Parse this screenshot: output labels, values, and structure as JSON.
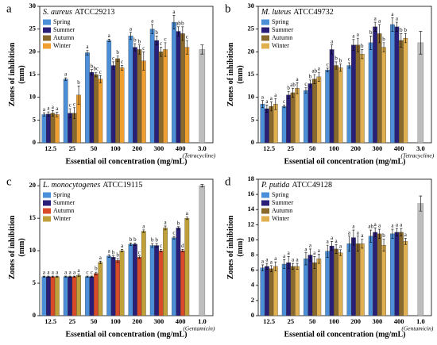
{
  "chart_data": [
    {
      "type": "bar",
      "panel": "a",
      "species": "S. aureus",
      "strain": "ATCC29213",
      "xlabel": "Essential oil concentration (mg/mL)",
      "ylabel": [
        "Zones of inhibition",
        "(mm)"
      ],
      "categories": [
        "12.5",
        "25",
        "50",
        "100",
        "200",
        "300",
        "400"
      ],
      "ylim": [
        0,
        30
      ],
      "yticks": [
        0,
        5,
        10,
        15,
        20,
        25,
        30
      ],
      "series": [
        {
          "name": "Spring",
          "color": "#4a8fd8",
          "values": [
            6.2,
            14,
            19.8,
            22.5,
            23.5,
            25,
            26.5
          ],
          "errors": [
            0.4,
            0.3,
            0.5,
            0.3,
            0.8,
            1.0,
            1.5
          ],
          "letters": [
            "a",
            "a",
            "a",
            "a",
            "a",
            "a",
            "a"
          ]
        },
        {
          "name": "Summer",
          "color": "#2a1f78",
          "values": [
            6.3,
            6.5,
            15.5,
            17,
            21,
            22.5,
            24.5
          ],
          "errors": [
            0.5,
            1.0,
            0.6,
            0.8,
            0.8,
            1.0,
            1.0
          ],
          "letters": [
            "a",
            "c",
            "b",
            "c",
            "b",
            "b",
            "ab"
          ]
        },
        {
          "name": "Autumn",
          "color": "#8a6a2c",
          "values": [
            6.5,
            6.5,
            15,
            18.5,
            20.5,
            20,
            24
          ],
          "errors": [
            0.6,
            1.2,
            0.5,
            0.6,
            1.0,
            1.0,
            1.5
          ],
          "letters": [
            "a",
            "c",
            "bc",
            "b",
            "b",
            "c",
            "b"
          ]
        },
        {
          "name": "Winter",
          "color": "#f0a030",
          "values": [
            6.2,
            10.5,
            14,
            16.5,
            18,
            20.5,
            21
          ],
          "errors": [
            0.5,
            2.0,
            0.8,
            0.5,
            2.0,
            1.5,
            1.5
          ],
          "letters": [
            "a",
            "b",
            "c",
            "c",
            "c",
            "c",
            "c"
          ]
        }
      ],
      "control": {
        "category": "3.0",
        "label": "(Tetracycline)",
        "value": 20.5,
        "error": 1.0,
        "color": "#bdbdbd"
      }
    },
    {
      "type": "bar",
      "panel": "b",
      "species": "M. luteus",
      "strain": "ATCC49732",
      "xlabel": "Essential oil concentration (mg/mL)",
      "ylabel": [
        "Zones of inhibition",
        "(mm)"
      ],
      "categories": [
        "12.5",
        "25",
        "50",
        "100",
        "200",
        "300",
        "400"
      ],
      "ylim": [
        0,
        30
      ],
      "yticks": [
        0,
        5,
        10,
        15,
        20,
        25,
        30
      ],
      "series": [
        {
          "name": "Spring",
          "color": "#4a8fd8",
          "values": [
            8.5,
            8,
            11.5,
            16,
            17,
            22,
            26
          ],
          "errors": [
            0.8,
            0.3,
            0.6,
            0.4,
            0.6,
            1.5,
            1.5
          ],
          "letters": [
            "a",
            "c",
            "c",
            "c",
            "c",
            "b",
            "a"
          ]
        },
        {
          "name": "Summer",
          "color": "#2a1f78",
          "values": [
            7.5,
            10.5,
            13,
            20.5,
            21.5,
            25.5,
            25.5
          ],
          "errors": [
            0.8,
            0.8,
            0.8,
            1.0,
            1.2,
            1.0,
            1.0
          ],
          "letters": [
            "a",
            "b",
            "b",
            "a",
            "a",
            "a",
            "a"
          ]
        },
        {
          "name": "Autumn",
          "color": "#8a6a2c",
          "values": [
            8,
            11,
            14,
            17,
            21.5,
            24,
            22.5
          ],
          "errors": [
            1.0,
            1.0,
            1.0,
            0.8,
            1.5,
            2.0,
            1.5
          ],
          "letters": [
            "a",
            "ab",
            "ab",
            "b",
            "a",
            "a",
            "b"
          ]
        },
        {
          "name": "Winter",
          "color": "#e0b050",
          "values": [
            8.5,
            12,
            14.5,
            16.5,
            19.5,
            21,
            23
          ],
          "errors": [
            1.2,
            1.2,
            1.0,
            0.8,
            1.0,
            1.0,
            1.0
          ],
          "letters": [
            "a",
            "a",
            "a",
            "b",
            "b",
            "b",
            "b"
          ]
        }
      ],
      "control": {
        "category": "3.0",
        "label": "(Tetracycline)",
        "value": 22,
        "error": 2.5,
        "color": "#bdbdbd"
      }
    },
    {
      "type": "bar",
      "panel": "c",
      "species": "L. monocytogenes",
      "strain": "ATCC19115",
      "xlabel": "Essential oil concentration (mg/mL)",
      "ylabel": [
        "Zones of inhibition",
        "(mm)"
      ],
      "categories": [
        "12.5",
        "25",
        "50",
        "100",
        "200",
        "300",
        "400"
      ],
      "ylim": [
        0,
        21
      ],
      "yticks": [
        0,
        5,
        10,
        15,
        20
      ],
      "series": [
        {
          "name": "Spring",
          "color": "#4a8fd8",
          "values": [
            6,
            6,
            6,
            9.2,
            11,
            10.8,
            12
          ],
          "errors": [
            0.1,
            0.1,
            0.1,
            0.2,
            0.2,
            0.3,
            0.2
          ],
          "letters": [
            "a",
            "a",
            "c",
            "a",
            "b",
            "b",
            "c"
          ]
        },
        {
          "name": "Summer",
          "color": "#2a1f78",
          "values": [
            6,
            6,
            6,
            9,
            11,
            10.8,
            13.5
          ],
          "errors": [
            0.1,
            0.1,
            0.1,
            0.2,
            0.2,
            0.3,
            0.2
          ],
          "letters": [
            "a",
            "a",
            "c",
            "b",
            "b",
            "b",
            "b"
          ]
        },
        {
          "name": "Autumn",
          "color": "#d84a28",
          "values": [
            6,
            6,
            6.5,
            8.5,
            9,
            10,
            10
          ],
          "errors": [
            0.1,
            0.1,
            0.2,
            0.3,
            0.2,
            0.2,
            0.2
          ],
          "letters": [
            "a",
            "a",
            "b",
            "b",
            "c",
            "c",
            "d"
          ]
        },
        {
          "name": "Winter",
          "color": "#c0a038",
          "values": [
            6,
            6.2,
            8.2,
            10,
            13,
            13.5,
            15
          ],
          "errors": [
            0.1,
            0.2,
            0.2,
            0.2,
            0.2,
            0.3,
            0.2
          ],
          "letters": [
            "a",
            "a",
            "a",
            "a",
            "a",
            "a",
            "a"
          ]
        }
      ],
      "control": {
        "category": "1.0",
        "label": "(Gentamicin)",
        "value": 20,
        "error": 0.2,
        "color": "#bdbdbd"
      }
    },
    {
      "type": "bar",
      "panel": "d",
      "species": "P. putida",
      "strain": "ATCC49128",
      "xlabel": "Essential oil concentration (mg/mL)",
      "ylabel": [
        "Zones of inhibition",
        "(mm)"
      ],
      "categories": [
        "12.5",
        "25",
        "50",
        "100",
        "200",
        "300",
        "400"
      ],
      "ylim": [
        0,
        18
      ],
      "yticks": [
        0,
        2,
        4,
        6,
        8,
        10,
        12,
        14,
        16,
        18
      ],
      "series": [
        {
          "name": "Spring",
          "color": "#4a8fd8",
          "values": [
            6.3,
            6.8,
            7.5,
            8.5,
            9.5,
            10.5,
            10.8
          ],
          "errors": [
            0.4,
            0.6,
            0.8,
            0.8,
            1.0,
            0.8,
            0.6
          ],
          "letters": [
            "a",
            "a",
            "a",
            "a",
            "a",
            "ab",
            "a"
          ]
        },
        {
          "name": "Summer",
          "color": "#2a1f78",
          "values": [
            6.5,
            7,
            8,
            9.2,
            10.3,
            11,
            11
          ],
          "errors": [
            0.4,
            0.8,
            0.8,
            0.6,
            1.0,
            0.6,
            0.5
          ],
          "letters": [
            "a",
            "a",
            "a",
            "a",
            "a",
            "a",
            "a"
          ]
        },
        {
          "name": "Autumn",
          "color": "#8a6a2c",
          "values": [
            6.2,
            6.5,
            7,
            8.8,
            9.5,
            10.8,
            11
          ],
          "errors": [
            0.4,
            0.4,
            0.8,
            0.6,
            1.0,
            0.6,
            0.5
          ],
          "letters": [
            "a",
            "a",
            "a",
            "a",
            "a",
            "a",
            "a"
          ]
        },
        {
          "name": "Winter",
          "color": "#e0b050",
          "values": [
            6.5,
            6.5,
            7.5,
            8.3,
            9.5,
            9.3,
            9.8
          ],
          "errors": [
            0.6,
            0.4,
            0.6,
            0.4,
            0.6,
            0.8,
            0.4
          ],
          "letters": [
            "a",
            "a",
            "a",
            "a",
            "a",
            "b",
            "a"
          ]
        }
      ],
      "control": {
        "category": "1.0",
        "label": "(Gentamicin)",
        "value": 14.8,
        "error": 1.0,
        "color": "#bdbdbd"
      }
    }
  ]
}
